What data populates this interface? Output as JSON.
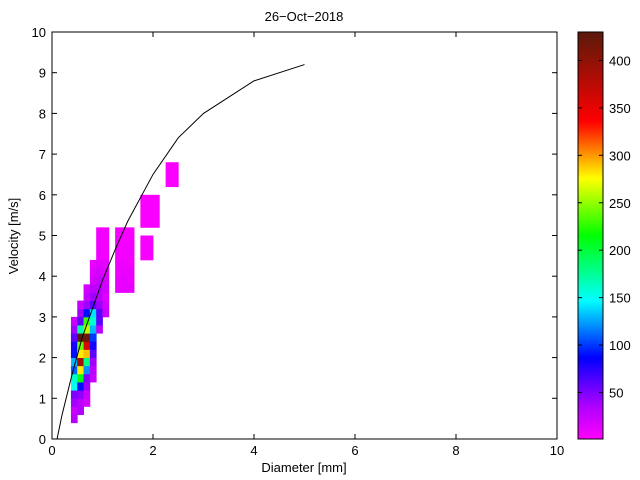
{
  "chart_data": {
    "type": "heatmap",
    "title": "26−Oct−2018",
    "xlabel": "Diameter [mm]",
    "ylabel": "Velocity [m/s]",
    "xlim": [
      0,
      10
    ],
    "ylim": [
      0,
      10
    ],
    "x_ticks": [
      "0",
      "2",
      "4",
      "6",
      "8",
      "10"
    ],
    "y_ticks": [
      "0",
      "1",
      "2",
      "3",
      "4",
      "5",
      "6",
      "7",
      "8",
      "9",
      "10"
    ],
    "colorbar": {
      "range": [
        1,
        430
      ],
      "ticks": [
        "50",
        "100",
        "150",
        "200",
        "250",
        "300",
        "350",
        "400"
      ],
      "colormap": "hsv-like: magenta (low) → blue → cyan → green → yellow → red → dark brown (high)"
    },
    "bin_width_mm": 0.125,
    "bin_height_ms": 0.2,
    "cells": [
      [
        0.375,
        0.4,
        30
      ],
      [
        0.375,
        0.6,
        25
      ],
      [
        0.5,
        0.6,
        35
      ],
      [
        0.375,
        0.8,
        40
      ],
      [
        0.5,
        0.8,
        30
      ],
      [
        0.625,
        0.8,
        20
      ],
      [
        0.375,
        1.0,
        50
      ],
      [
        0.5,
        1.0,
        45
      ],
      [
        0.625,
        1.0,
        25
      ],
      [
        0.375,
        1.2,
        150
      ],
      [
        0.5,
        1.2,
        90
      ],
      [
        0.625,
        1.2,
        40
      ],
      [
        0.375,
        1.4,
        160
      ],
      [
        0.5,
        1.4,
        210
      ],
      [
        0.625,
        1.4,
        50
      ],
      [
        0.75,
        1.4,
        25
      ],
      [
        0.375,
        1.6,
        110
      ],
      [
        0.5,
        1.6,
        280
      ],
      [
        0.625,
        1.6,
        120
      ],
      [
        0.75,
        1.6,
        30
      ],
      [
        0.375,
        1.8,
        130
      ],
      [
        0.5,
        1.8,
        390
      ],
      [
        0.625,
        1.8,
        180
      ],
      [
        0.75,
        1.8,
        40
      ],
      [
        0.375,
        2.0,
        90
      ],
      [
        0.5,
        2.0,
        280
      ],
      [
        0.625,
        2.0,
        290
      ],
      [
        0.75,
        2.0,
        60
      ],
      [
        0.375,
        2.2,
        80
      ],
      [
        0.5,
        2.2,
        240
      ],
      [
        0.625,
        2.2,
        360
      ],
      [
        0.75,
        2.2,
        80
      ],
      [
        0.375,
        2.4,
        60
      ],
      [
        0.5,
        2.4,
        430
      ],
      [
        0.625,
        2.4,
        420
      ],
      [
        0.75,
        2.4,
        100
      ],
      [
        0.375,
        2.6,
        40
      ],
      [
        0.5,
        2.6,
        170
      ],
      [
        0.625,
        2.6,
        260
      ],
      [
        0.75,
        2.6,
        130
      ],
      [
        0.875,
        2.6,
        30
      ],
      [
        0.375,
        2.8,
        25
      ],
      [
        0.5,
        2.8,
        60
      ],
      [
        0.625,
        2.8,
        230
      ],
      [
        0.75,
        2.8,
        160
      ],
      [
        0.875,
        2.8,
        60
      ],
      [
        0.5,
        3.0,
        40
      ],
      [
        0.625,
        3.0,
        90
      ],
      [
        0.75,
        3.0,
        140
      ],
      [
        0.875,
        3.0,
        60
      ],
      [
        1.0,
        3.0,
        25
      ],
      [
        0.5,
        3.2,
        25
      ],
      [
        0.625,
        3.2,
        40
      ],
      [
        0.75,
        3.2,
        60
      ],
      [
        0.875,
        3.2,
        40
      ],
      [
        1.0,
        3.2,
        20
      ],
      [
        0.625,
        3.4,
        25
      ],
      [
        0.75,
        3.4,
        40
      ],
      [
        0.875,
        3.4,
        30
      ],
      [
        1.0,
        3.4,
        15
      ],
      [
        0.625,
        3.6,
        20
      ],
      [
        0.75,
        3.6,
        30
      ],
      [
        0.875,
        3.6,
        30
      ],
      [
        1.0,
        3.6,
        20
      ],
      [
        1.25,
        3.6,
        10
      ],
      [
        1.375,
        3.6,
        10
      ],
      [
        1.5,
        3.6,
        12
      ],
      [
        0.75,
        3.8,
        20
      ],
      [
        0.875,
        3.8,
        25
      ],
      [
        1.0,
        3.8,
        20
      ],
      [
        1.25,
        3.8,
        10
      ],
      [
        1.375,
        3.8,
        12
      ],
      [
        1.5,
        3.8,
        8
      ],
      [
        0.75,
        4.0,
        15
      ],
      [
        0.875,
        4.0,
        20
      ],
      [
        1.0,
        4.0,
        15
      ],
      [
        1.25,
        4.0,
        8
      ],
      [
        1.375,
        4.0,
        10
      ],
      [
        1.5,
        4.0,
        10
      ],
      [
        0.75,
        4.2,
        10
      ],
      [
        0.875,
        4.2,
        15
      ],
      [
        1.0,
        4.2,
        12
      ],
      [
        1.25,
        4.2,
        8
      ],
      [
        1.375,
        4.2,
        8
      ],
      [
        1.5,
        4.2,
        6
      ],
      [
        0.875,
        4.4,
        8
      ],
      [
        1.0,
        4.4,
        6
      ],
      [
        1.25,
        4.4,
        6
      ],
      [
        1.375,
        4.4,
        6
      ],
      [
        1.5,
        4.4,
        6
      ],
      [
        1.75,
        4.4,
        5
      ],
      [
        1.875,
        4.4,
        5
      ],
      [
        0.875,
        4.6,
        8
      ],
      [
        1.0,
        4.6,
        6
      ],
      [
        1.25,
        4.6,
        6
      ],
      [
        1.375,
        4.6,
        6
      ],
      [
        1.5,
        4.6,
        6
      ],
      [
        1.75,
        4.6,
        5
      ],
      [
        1.875,
        4.6,
        5
      ],
      [
        0.875,
        4.8,
        6
      ],
      [
        1.0,
        4.8,
        6
      ],
      [
        1.25,
        4.8,
        5
      ],
      [
        1.375,
        4.8,
        5
      ],
      [
        1.5,
        4.8,
        5
      ],
      [
        1.75,
        4.8,
        5
      ],
      [
        1.875,
        4.8,
        5
      ],
      [
        0.875,
        5.0,
        6
      ],
      [
        1.0,
        5.0,
        6
      ],
      [
        1.25,
        5.0,
        5
      ],
      [
        1.375,
        5.0,
        5
      ],
      [
        1.5,
        5.0,
        5
      ],
      [
        1.75,
        5.2,
        4
      ],
      [
        1.875,
        5.2,
        4
      ],
      [
        2.0,
        5.2,
        4
      ],
      [
        1.75,
        5.4,
        4
      ],
      [
        1.875,
        5.4,
        4
      ],
      [
        2.0,
        5.4,
        4
      ],
      [
        1.75,
        5.6,
        4
      ],
      [
        1.875,
        5.6,
        4
      ],
      [
        2.0,
        5.6,
        4
      ],
      [
        1.75,
        5.8,
        4
      ],
      [
        1.875,
        5.8,
        4
      ],
      [
        2.0,
        5.8,
        4
      ],
      [
        2.25,
        6.2,
        3
      ],
      [
        2.375,
        6.2,
        3
      ],
      [
        2.25,
        6.4,
        3
      ],
      [
        2.375,
        6.4,
        3
      ],
      [
        2.25,
        6.6,
        3
      ],
      [
        2.375,
        6.6,
        3
      ]
    ],
    "fit_curve": {
      "x": [
        0.1,
        0.2,
        0.3,
        0.4,
        0.5,
        0.6,
        0.8,
        1.0,
        1.25,
        1.5,
        2.0,
        2.5,
        3.0,
        4.0,
        5.0
      ],
      "y": [
        0.0,
        0.6,
        1.1,
        1.6,
        2.05,
        2.5,
        3.2,
        3.9,
        4.65,
        5.35,
        6.5,
        7.4,
        8.0,
        8.8,
        9.2
      ]
    }
  }
}
